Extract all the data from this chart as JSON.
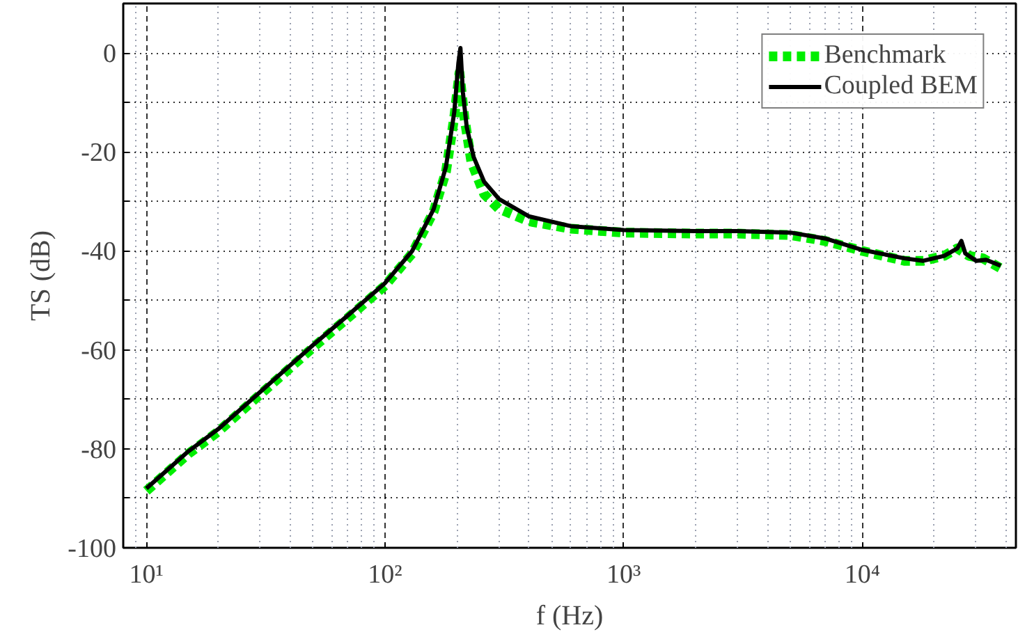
{
  "chart_data": {
    "type": "line",
    "xlabel": "f (Hz)",
    "ylabel": "TS (dB)",
    "log": "x",
    "xlim": [
      8,
      44000
    ],
    "ylim": [
      -100,
      10
    ],
    "xticks": [
      {
        "value": 10,
        "label": "10¹"
      },
      {
        "value": 100,
        "label": "10²"
      },
      {
        "value": 1000,
        "label": "10³"
      },
      {
        "value": 10000,
        "label": "10⁴"
      }
    ],
    "yticks": [
      -100,
      {
        "value": -90,
        "label": null
      },
      -80,
      {
        "value": -70,
        "label": null
      },
      -60,
      {
        "value": -50,
        "label": null
      },
      -40,
      {
        "value": -30,
        "label": null
      },
      -20,
      {
        "value": -10,
        "label": null
      },
      0
    ],
    "grid": true,
    "legend": "top right",
    "series": [
      {
        "name": "Benchmark",
        "color": "#00ee00",
        "line_style": "dashed",
        "x": [
          10,
          15,
          20,
          30,
          50,
          70,
          100,
          130,
          160,
          180,
          195,
          205,
          215,
          230,
          260,
          300,
          400,
          600,
          1000,
          2000,
          3000,
          5000,
          7000,
          10000,
          15000,
          18000,
          22000,
          25000,
          28000,
          32000,
          38000
        ],
        "values": [
          -88.5,
          -81,
          -76.5,
          -69,
          -59.5,
          -53.5,
          -47,
          -40.5,
          -32,
          -24,
          -13,
          -4,
          -13,
          -22,
          -28.5,
          -31.5,
          -34,
          -35.5,
          -36.3,
          -36.5,
          -36.5,
          -36.8,
          -38,
          -40,
          -42,
          -42,
          -41,
          -39.5,
          -41,
          -41.5,
          -43.5
        ]
      },
      {
        "name": "Coupled BEM",
        "color": "#000000",
        "line_style": "solid",
        "x": [
          10,
          15,
          20,
          30,
          50,
          70,
          100,
          130,
          160,
          180,
          195,
          203,
          207,
          212,
          220,
          235,
          260,
          300,
          400,
          600,
          1000,
          2000,
          3000,
          5000,
          7000,
          10000,
          15000,
          18000,
          22000,
          25000,
          26000,
          27000,
          30000,
          33000,
          38000
        ],
        "values": [
          -88,
          -80.5,
          -76,
          -68.5,
          -59,
          -53,
          -46.5,
          -40,
          -31.5,
          -23,
          -12,
          -2,
          1,
          -8,
          -15,
          -21,
          -26,
          -29.5,
          -33,
          -35,
          -35.8,
          -36,
          -36,
          -36.3,
          -37.5,
          -39.8,
          -41.5,
          -42,
          -41,
          -39.5,
          -38,
          -40.5,
          -42,
          -41.8,
          -43
        ]
      }
    ]
  }
}
